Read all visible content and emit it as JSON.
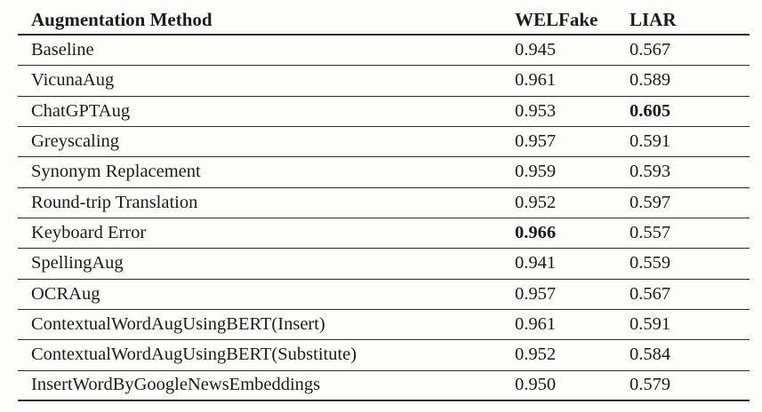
{
  "table": {
    "title": "augmentation-results-table",
    "headers": {
      "method": "Augmentation Method",
      "welfake": "WELFake",
      "liar": "LIAR"
    },
    "rows": [
      {
        "method": "Baseline",
        "welfake": "0.945",
        "liar": "0.567"
      },
      {
        "method": "VicunaAug",
        "welfake": "0.961",
        "liar": "0.589"
      },
      {
        "method": "ChatGPTAug",
        "welfake": "0.953",
        "liar": "0.605",
        "liar_bold": true
      },
      {
        "method": "Greyscaling",
        "welfake": "0.957",
        "liar": "0.591"
      },
      {
        "method": "Synonym Replacement",
        "welfake": "0.959",
        "liar": "0.593"
      },
      {
        "method": "Round-trip Translation",
        "welfake": "0.952",
        "liar": "0.597"
      },
      {
        "method": "Keyboard Error",
        "welfake": "0.966",
        "welfake_bold": true,
        "liar": "0.557"
      },
      {
        "method": "SpellingAug",
        "welfake": "0.941",
        "liar": "0.559"
      },
      {
        "method": "OCRAug",
        "welfake": "0.957",
        "liar": "0.567"
      },
      {
        "method": "ContextualWordAugUsingBERT(Insert)",
        "welfake": "0.961",
        "liar": "0.591"
      },
      {
        "method": "ContextualWordAugUsingBERT(Substitute)",
        "welfake": "0.952",
        "liar": "0.584"
      },
      {
        "method": "InsertWordByGoogleNewsEmbeddings",
        "welfake": "0.950",
        "liar": "0.579"
      }
    ],
    "colors": {
      "text": "#1b1b1b",
      "rule": "#2b2b2b",
      "background": "#fdfdfc"
    }
  }
}
